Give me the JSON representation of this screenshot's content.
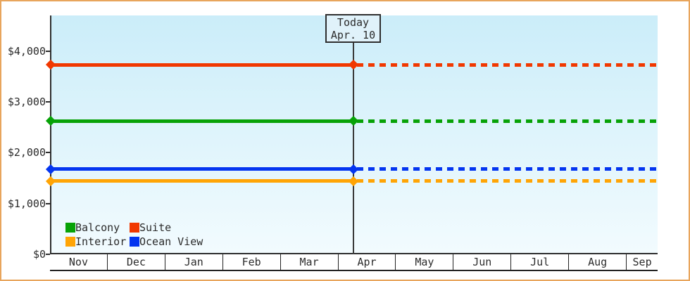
{
  "frame": {
    "border_color": "#e8a55c",
    "background": "#ffffff"
  },
  "chart_data": {
    "type": "line",
    "title": "",
    "x_axis": {
      "months": [
        "Nov",
        "Dec",
        "Jan",
        "Feb",
        "Mar",
        "Apr",
        "May",
        "Jun",
        "Jul",
        "Aug",
        "Sep"
      ]
    },
    "y_axis": {
      "min": 0,
      "max": 4000,
      "ticks": [
        {
          "value": 4000,
          "label": "$4,000"
        },
        {
          "value": 3000,
          "label": "$3,000"
        },
        {
          "value": 2000,
          "label": "$2,000"
        },
        {
          "value": 1000,
          "label": "$1,000"
        },
        {
          "value": 0,
          "label": "$0"
        }
      ]
    },
    "today_marker": {
      "line1": "Today",
      "line2": "Apr. 10",
      "month": "Apr"
    },
    "series": [
      {
        "name": "Suite",
        "value": 3725,
        "color": "#f13800"
      },
      {
        "name": "Balcony",
        "value": 2620,
        "color": "#07a207"
      },
      {
        "name": "Ocean View",
        "value": 1675,
        "color": "#0435f0"
      },
      {
        "name": "Interior",
        "value": 1440,
        "color": "#ffa405"
      }
    ],
    "line_style": {
      "before_today": "solid",
      "after_today": "dotted",
      "markers": "diamond at start and at today"
    },
    "legend": {
      "position": "bottom-left-inside",
      "items": [
        "Balcony",
        "Suite",
        "Interior",
        "Ocean View"
      ]
    },
    "plot_background": {
      "top": "#cbedf9",
      "bottom": "#f2fbfe"
    }
  }
}
